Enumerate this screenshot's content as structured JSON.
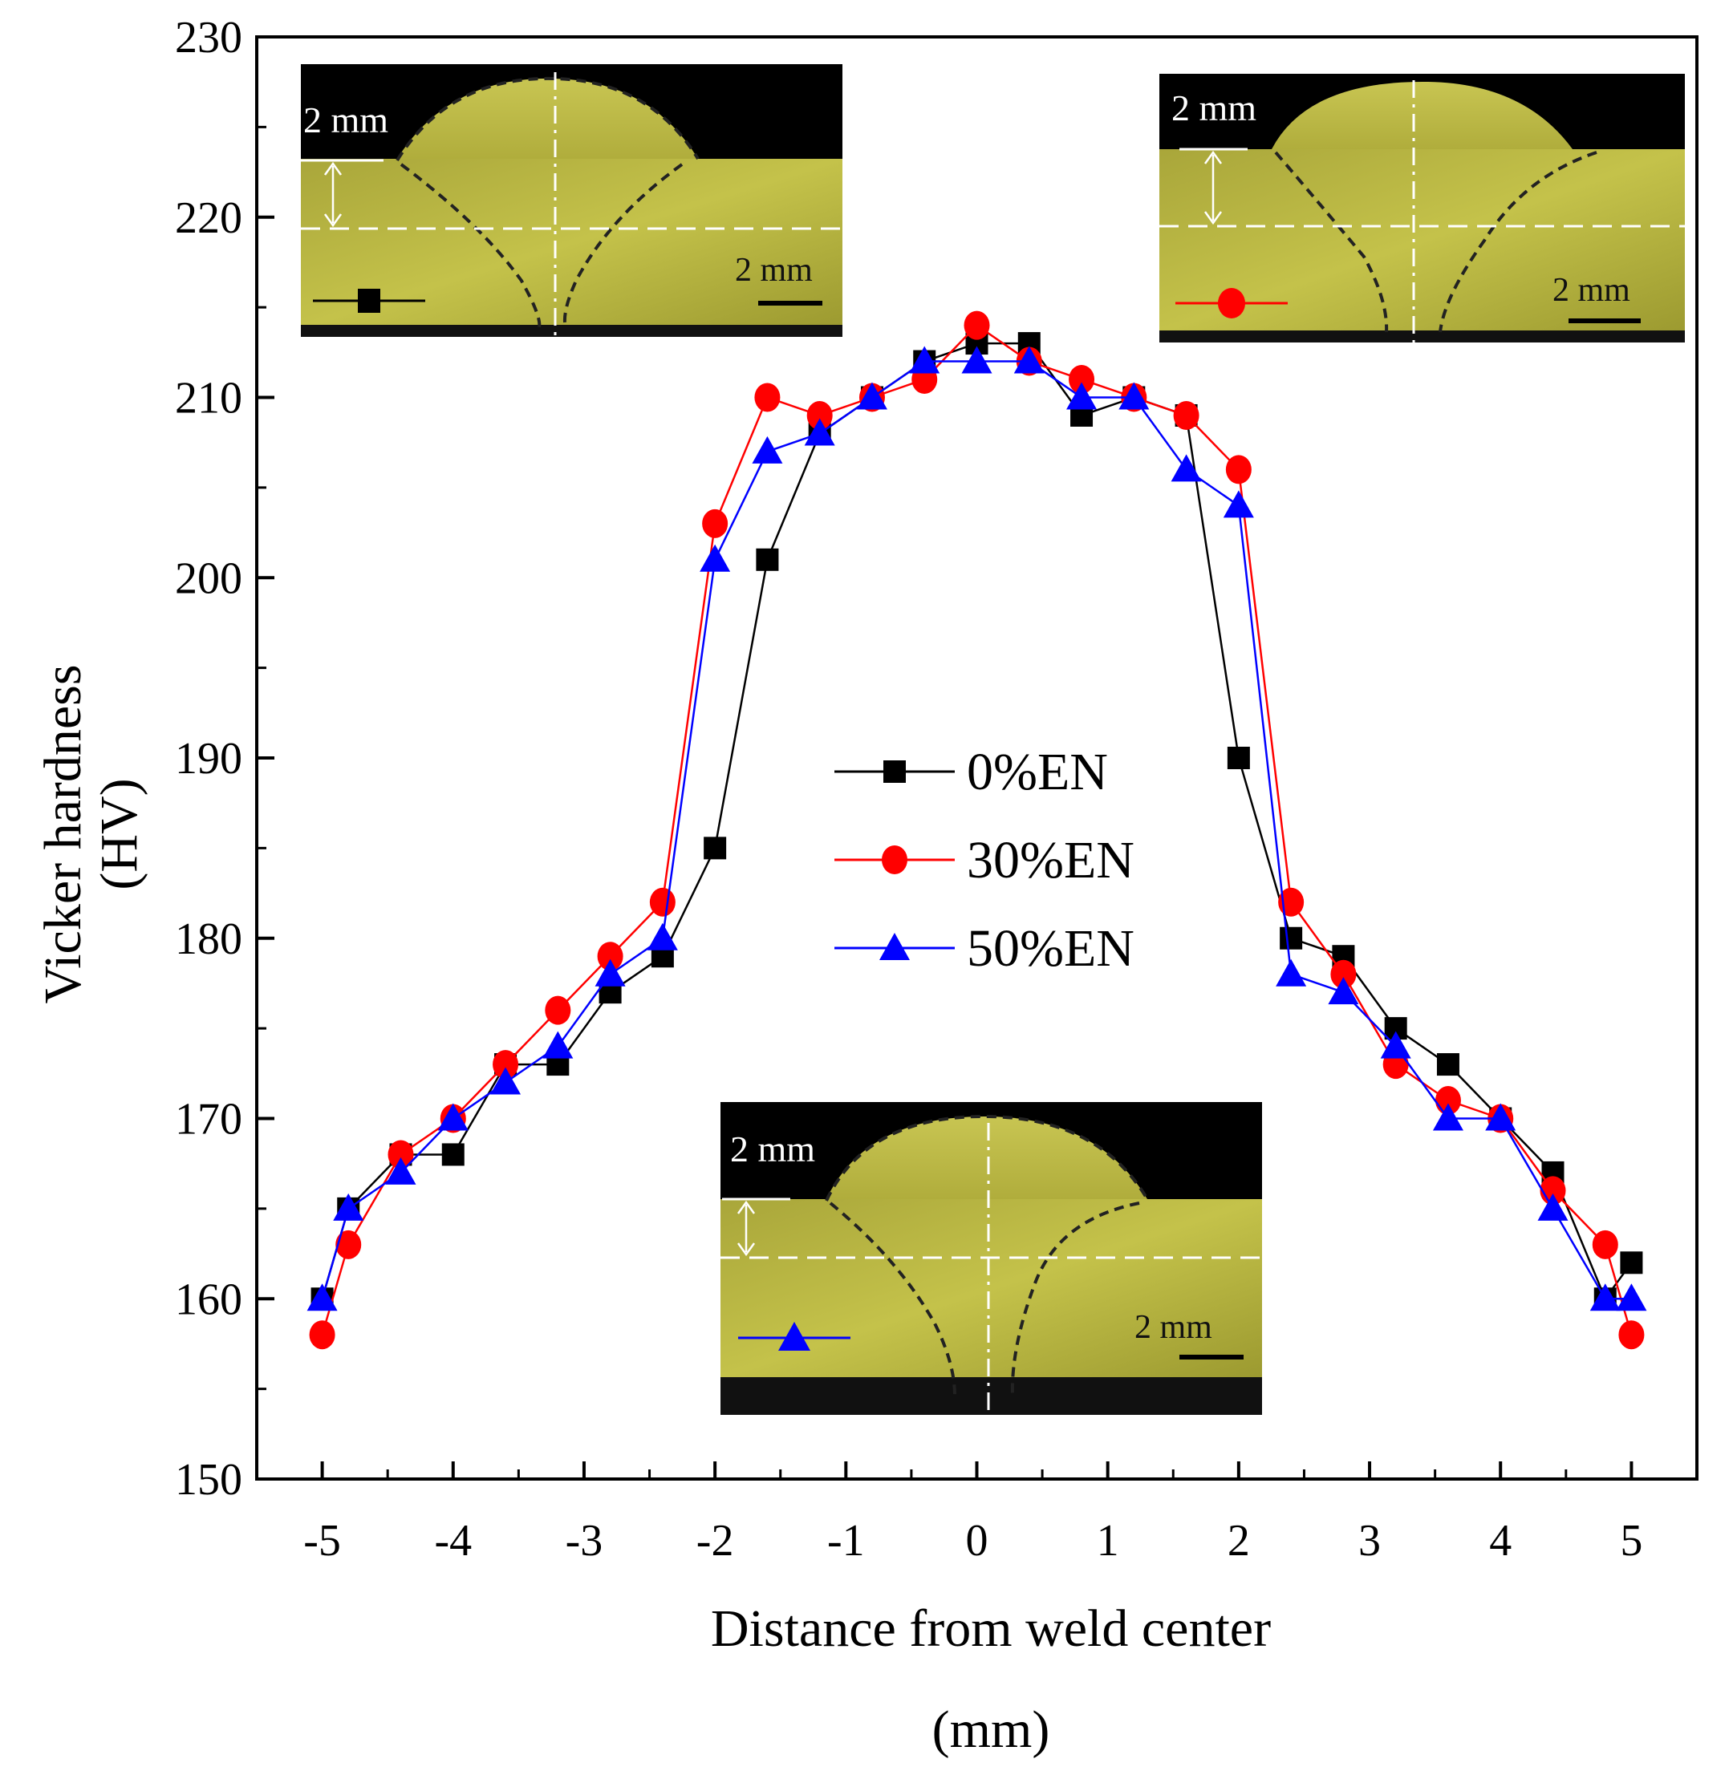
{
  "chart_data": {
    "type": "line",
    "title": "",
    "xlabel": "Distance from weld center",
    "xlabel_unit": "(mm)",
    "ylabel": "Vicker hardness",
    "ylabel_unit": "(HV)",
    "xlim": [
      -5.5,
      5.5
    ],
    "ylim": [
      150,
      230
    ],
    "xticks": [
      -5,
      -4,
      -3,
      -2,
      -1,
      0,
      1,
      2,
      3,
      4,
      5
    ],
    "yticks": [
      150,
      160,
      170,
      180,
      190,
      200,
      210,
      220,
      230
    ],
    "legend_position": "center",
    "series": [
      {
        "name": "0%EN",
        "color": "#000000",
        "marker": "square",
        "x": [
          -5,
          -4.8,
          -4.4,
          -4,
          -3.6,
          -3.2,
          -2.8,
          -2.4,
          -2,
          -1.6,
          -1.2,
          -0.8,
          -0.4,
          0,
          0.4,
          0.8,
          1.2,
          1.6,
          2,
          2.4,
          2.8,
          3.2,
          3.6,
          4,
          4.4,
          4.8,
          5
        ],
        "y": [
          160,
          165,
          168,
          168,
          173,
          173,
          177,
          179,
          185,
          201,
          208,
          210,
          212,
          213,
          213,
          209,
          210,
          209,
          190,
          180,
          179,
          175,
          173,
          170,
          167,
          160,
          162
        ]
      },
      {
        "name": "30%EN",
        "color": "#ff0000",
        "marker": "circle",
        "x": [
          -5,
          -4.8,
          -4.4,
          -4,
          -3.6,
          -3.2,
          -2.8,
          -2.4,
          -2,
          -1.6,
          -1.2,
          -0.8,
          -0.4,
          0,
          0.4,
          0.8,
          1.2,
          1.6,
          2,
          2.4,
          2.8,
          3.2,
          3.6,
          4,
          4.4,
          4.8,
          5
        ],
        "y": [
          158,
          163,
          168,
          170,
          173,
          176,
          179,
          182,
          203,
          210,
          209,
          210,
          211,
          214,
          212,
          211,
          210,
          209,
          206,
          182,
          178,
          173,
          171,
          170,
          166,
          163,
          158
        ]
      },
      {
        "name": "50%EN",
        "color": "#0000ff",
        "marker": "triangle",
        "x": [
          -5,
          -4.8,
          -4.4,
          -4,
          -3.6,
          -3.2,
          -2.8,
          -2.4,
          -2,
          -1.6,
          -1.2,
          -0.8,
          -0.4,
          0,
          0.4,
          0.8,
          1.2,
          1.6,
          2,
          2.4,
          2.8,
          3.2,
          3.6,
          4,
          4.4,
          4.8,
          5
        ],
        "y": [
          160,
          165,
          167,
          170,
          172,
          174,
          178,
          180,
          201,
          207,
          208,
          210,
          212,
          212,
          212,
          210,
          210,
          206,
          204,
          178,
          177,
          174,
          170,
          170,
          165,
          160,
          160
        ]
      }
    ],
    "insets": [
      {
        "series": "0%EN",
        "label_top": "2 mm",
        "scale_label": "2 mm"
      },
      {
        "series": "30%EN",
        "label_top": "2 mm",
        "scale_label": "2 mm"
      },
      {
        "series": "50%EN",
        "label_top": "2 mm",
        "scale_label": "2 mm"
      }
    ]
  }
}
